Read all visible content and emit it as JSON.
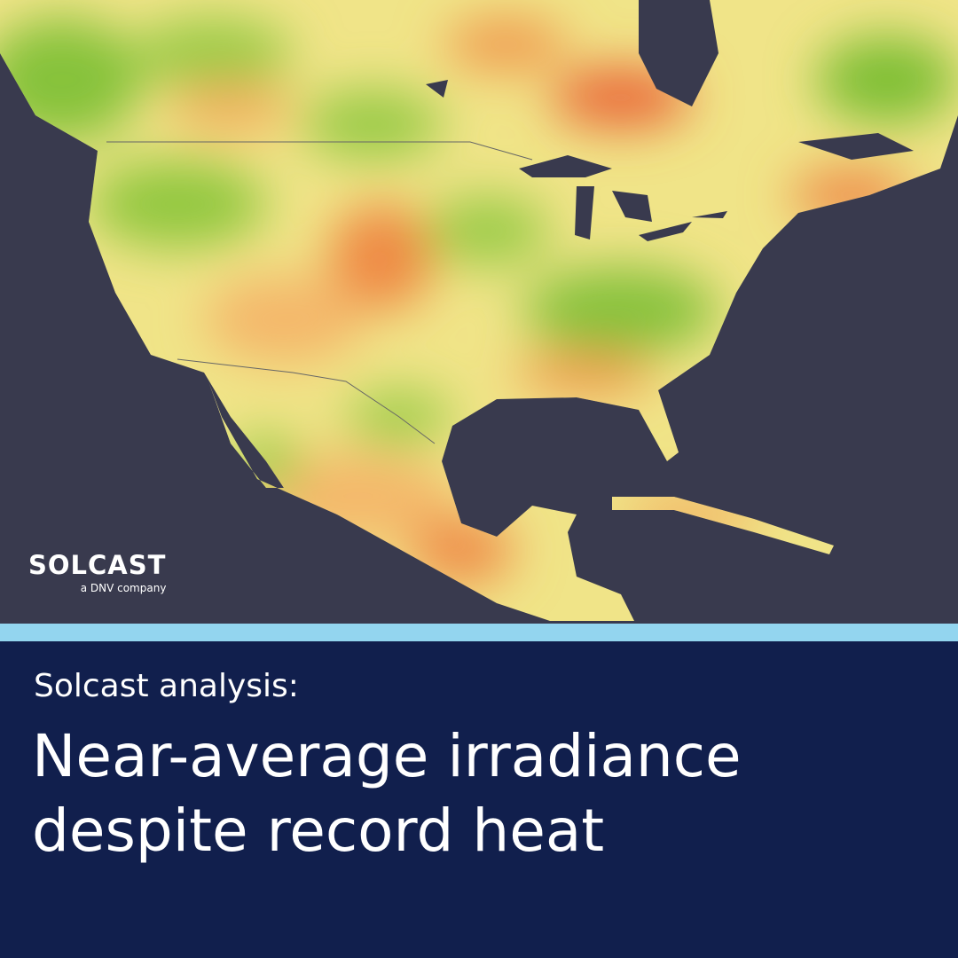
{
  "logo": {
    "name": "SOLCAST",
    "tagline": "a DNV company"
  },
  "kicker": "Solcast analysis:",
  "headline": {
    "lines": [
      "Near-average irradiance",
      "despite record heat"
    ]
  }
}
